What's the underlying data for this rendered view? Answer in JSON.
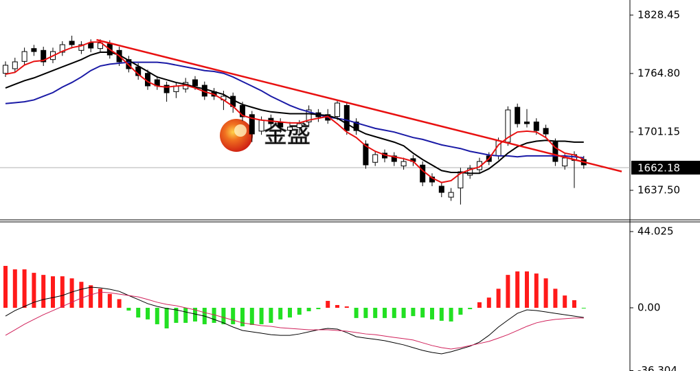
{
  "chart_data": [
    {
      "type": "candlestick",
      "watermark": "金盛",
      "up_color": "#ffffff",
      "down_color": "#000000",
      "wick_color": "#000000",
      "open": [
        1765,
        1770,
        1778,
        1792,
        1790,
        1780,
        1788,
        1800,
        1790,
        1798,
        1792,
        1797,
        1790,
        1780,
        1772,
        1765,
        1758,
        1752,
        1745,
        1748,
        1758,
        1752,
        1745,
        1736,
        1740,
        1730,
        1720,
        1702,
        1716,
        1712,
        1703,
        1706,
        1712,
        1722,
        1720,
        1718,
        1730,
        1712,
        1688,
        1668,
        1678,
        1675,
        1664,
        1672,
        1665,
        1652,
        1642,
        1630,
        1640,
        1654,
        1660,
        1675,
        1675,
        1690,
        1728,
        1712,
        1712,
        1705,
        1690,
        1664,
        1670,
        1671
      ],
      "high": [
        1778,
        1782,
        1793,
        1796,
        1794,
        1793,
        1800,
        1806,
        1800,
        1802,
        1802,
        1801,
        1794,
        1784,
        1776,
        1769,
        1762,
        1756,
        1755,
        1760,
        1762,
        1756,
        1749,
        1746,
        1744,
        1734,
        1724,
        1718,
        1720,
        1716,
        1712,
        1714,
        1730,
        1726,
        1726,
        1736,
        1734,
        1716,
        1692,
        1680,
        1682,
        1679,
        1673,
        1676,
        1669,
        1656,
        1646,
        1640,
        1662,
        1665,
        1673,
        1679,
        1695,
        1729,
        1732,
        1726,
        1716,
        1709,
        1694,
        1677,
        1680,
        1675
      ],
      "low": [
        1761,
        1766,
        1774,
        1784,
        1773,
        1776,
        1784,
        1792,
        1786,
        1788,
        1788,
        1781,
        1773,
        1766,
        1758,
        1747,
        1747,
        1734,
        1738,
        1744,
        1747,
        1736,
        1736,
        1725,
        1722,
        1713,
        1690,
        1698,
        1706,
        1700,
        1698,
        1700,
        1708,
        1712,
        1710,
        1714,
        1698,
        1698,
        1661,
        1664,
        1668,
        1664,
        1660,
        1664,
        1642,
        1642,
        1630,
        1626,
        1622,
        1650,
        1656,
        1665,
        1671,
        1686,
        1706,
        1706,
        1698,
        1694,
        1664,
        1660,
        1640,
        1661
      ],
      "close": [
        1773.8,
        1777.5,
        1788.7,
        1788.7,
        1777.5,
        1788.7,
        1796.2,
        1796.2,
        1796.2,
        1792.5,
        1798,
        1785,
        1777.5,
        1770,
        1762.5,
        1751.3,
        1751.3,
        1743.8,
        1751.3,
        1755,
        1751.3,
        1740.1,
        1740.1,
        1740.1,
        1728.8,
        1717.6,
        1698.9,
        1713.9,
        1710.1,
        1706.4,
        1706.4,
        1710.1,
        1725.1,
        1717.6,
        1713.9,
        1732.6,
        1702.6,
        1702.6,
        1665.2,
        1676.4,
        1672.7,
        1668.9,
        1668.9,
        1668.9,
        1646.5,
        1646.5,
        1635.2,
        1635.2,
        1657.7,
        1661.4,
        1668.9,
        1668.9,
        1691.4,
        1725.1,
        1710.1,
        1710.1,
        1702.6,
        1698.9,
        1668.9,
        1672.7,
        1676.4,
        1665.2
      ],
      "series": [
        {
          "color": "#1a1aa6",
          "values": [
            1732,
            1733,
            1734,
            1736,
            1740,
            1744,
            1750,
            1755,
            1761,
            1768,
            1773,
            1775,
            1776,
            1777,
            1777,
            1777,
            1777,
            1776,
            1774,
            1772,
            1770,
            1768,
            1767,
            1765,
            1761,
            1756,
            1751,
            1746,
            1740,
            1735,
            1730,
            1726,
            1723,
            1720,
            1717,
            1716,
            1714,
            1711,
            1708,
            1705,
            1703,
            1701,
            1698,
            1695,
            1693,
            1690,
            1687,
            1685,
            1683,
            1680,
            1678,
            1676,
            1675,
            1675,
            1674,
            1675,
            1675,
            1675,
            1675,
            1675,
            1674,
            1673
          ]
        },
        {
          "color": "#000000",
          "values": [
            1749,
            1753,
            1757,
            1760,
            1764,
            1768,
            1772,
            1776,
            1780,
            1785,
            1788,
            1788,
            1785,
            1779,
            1773,
            1767,
            1761,
            1758,
            1755,
            1753,
            1750,
            1748,
            1745,
            1742,
            1736,
            1731,
            1728,
            1725,
            1723,
            1722,
            1721,
            1721,
            1721,
            1720,
            1719,
            1716,
            1710,
            1704,
            1699,
            1696,
            1693,
            1690,
            1686,
            1678,
            1671,
            1665,
            1659,
            1657,
            1657,
            1656,
            1656,
            1661,
            1669,
            1678,
            1685,
            1689,
            1691,
            1692,
            1691,
            1691,
            1690,
            1690
          ]
        },
        {
          "color": "#e81010",
          "values": [
            1764,
            1766,
            1774,
            1778,
            1779,
            1784,
            1789,
            1793,
            1795,
            1799,
            1799,
            1791,
            1784,
            1774,
            1764,
            1756,
            1751,
            1750,
            1751,
            1752,
            1749,
            1745,
            1742,
            1736,
            1729,
            1719,
            1716,
            1714,
            1713,
            1712,
            1711,
            1711,
            1714,
            1716,
            1718,
            1710,
            1701,
            1695,
            1686,
            1680,
            1676,
            1674,
            1672,
            1669,
            1659,
            1651,
            1646,
            1648,
            1656,
            1660,
            1663,
            1672,
            1687,
            1695,
            1701,
            1702,
            1701,
            1695,
            1684,
            1678,
            1676,
            1671
          ]
        }
      ],
      "trendline": {
        "color": "#e81010",
        "from": [
          9.6,
          1801.5
        ],
        "to": [
          65,
          1658
        ]
      },
      "last_price": 1662.18,
      "ylim": [
        1605.3,
        1844.9
      ],
      "yticks": [
        1828.45,
        {
          "value": 1764.8,
          "label": "1764.80"
        },
        1701.15,
        {
          "value": 1637.5,
          "label": "1637.50"
        }
      ]
    },
    {
      "type": "macd",
      "positive_color": "#ff1a1a",
      "negative_color": "#22e022",
      "values": [
        24.2,
        22.2,
        22.2,
        20.2,
        19,
        18.2,
        18.2,
        17,
        15,
        13,
        11,
        8,
        5,
        -1.6,
        -5.6,
        -6.7,
        -9.5,
        -11.9,
        -8.7,
        -8.7,
        -7.9,
        -9.5,
        -8.7,
        -9.5,
        -9.5,
        -10.7,
        -9.9,
        -9.5,
        -8.7,
        -6.7,
        -5.6,
        -4,
        -2,
        -0.8,
        4,
        1.6,
        0.8,
        -5.9,
        -5.9,
        -5.9,
        -5.9,
        -5.9,
        -5.9,
        -4.8,
        -5.6,
        -6.7,
        -7.5,
        -7.9,
        -4,
        -0.8,
        3.2,
        5.9,
        11,
        19,
        21,
        21,
        19.8,
        17,
        11,
        7.1,
        4.4,
        -0.4
      ],
      "series": [
        {
          "color": "#000000",
          "values": [
            -4.8,
            -1.6,
            0.8,
            3.2,
            4.8,
            5.9,
            7.1,
            9.1,
            10.7,
            11.9,
            11.5,
            10.7,
            9.5,
            7.1,
            4.8,
            2.4,
            0.8,
            -0.4,
            -1.2,
            -2.4,
            -3.6,
            -4.8,
            -6.7,
            -8.7,
            -11.1,
            -13.1,
            -13.9,
            -14.7,
            -15.5,
            -15.9,
            -15.9,
            -15.1,
            -13.9,
            -12.7,
            -11.9,
            -12.3,
            -14.3,
            -16.7,
            -17.5,
            -18.2,
            -19,
            -20.2,
            -21.4,
            -23,
            -24.6,
            -25.8,
            -26.6,
            -25.4,
            -23.8,
            -22.2,
            -19.8,
            -15.9,
            -11.1,
            -7.1,
            -3.2,
            -1.2,
            -1.6,
            -2.4,
            -3.2,
            -4,
            -4.8,
            -5.6
          ]
        },
        {
          "color": "#d0205a",
          "values": [
            -15.9,
            -12.7,
            -9.5,
            -6.7,
            -4,
            -1.6,
            0.8,
            3.2,
            5.6,
            7.5,
            9.1,
            8.7,
            7.9,
            7.1,
            6.3,
            4.8,
            3.2,
            2,
            1.2,
            0,
            -1.2,
            -2.8,
            -4,
            -5.6,
            -7.1,
            -8.7,
            -9.5,
            -10.3,
            -10.7,
            -11.5,
            -11.9,
            -12.3,
            -12.7,
            -12.7,
            -12.7,
            -13.1,
            -13.5,
            -14.3,
            -15.1,
            -15.5,
            -16.3,
            -17.1,
            -17.8,
            -18.6,
            -20.2,
            -21.8,
            -23,
            -23.8,
            -23,
            -21.8,
            -20.6,
            -19.4,
            -17.5,
            -15.5,
            -13.1,
            -10.7,
            -8.7,
            -7.5,
            -6.7,
            -6.3,
            -5.9,
            -5.9
          ]
        }
      ],
      "ylim": [
        -36.5,
        49.6
      ],
      "yticks": [
        44.025,
        {
          "value": 0,
          "label": "0.00"
        },
        -36.304
      ]
    }
  ]
}
